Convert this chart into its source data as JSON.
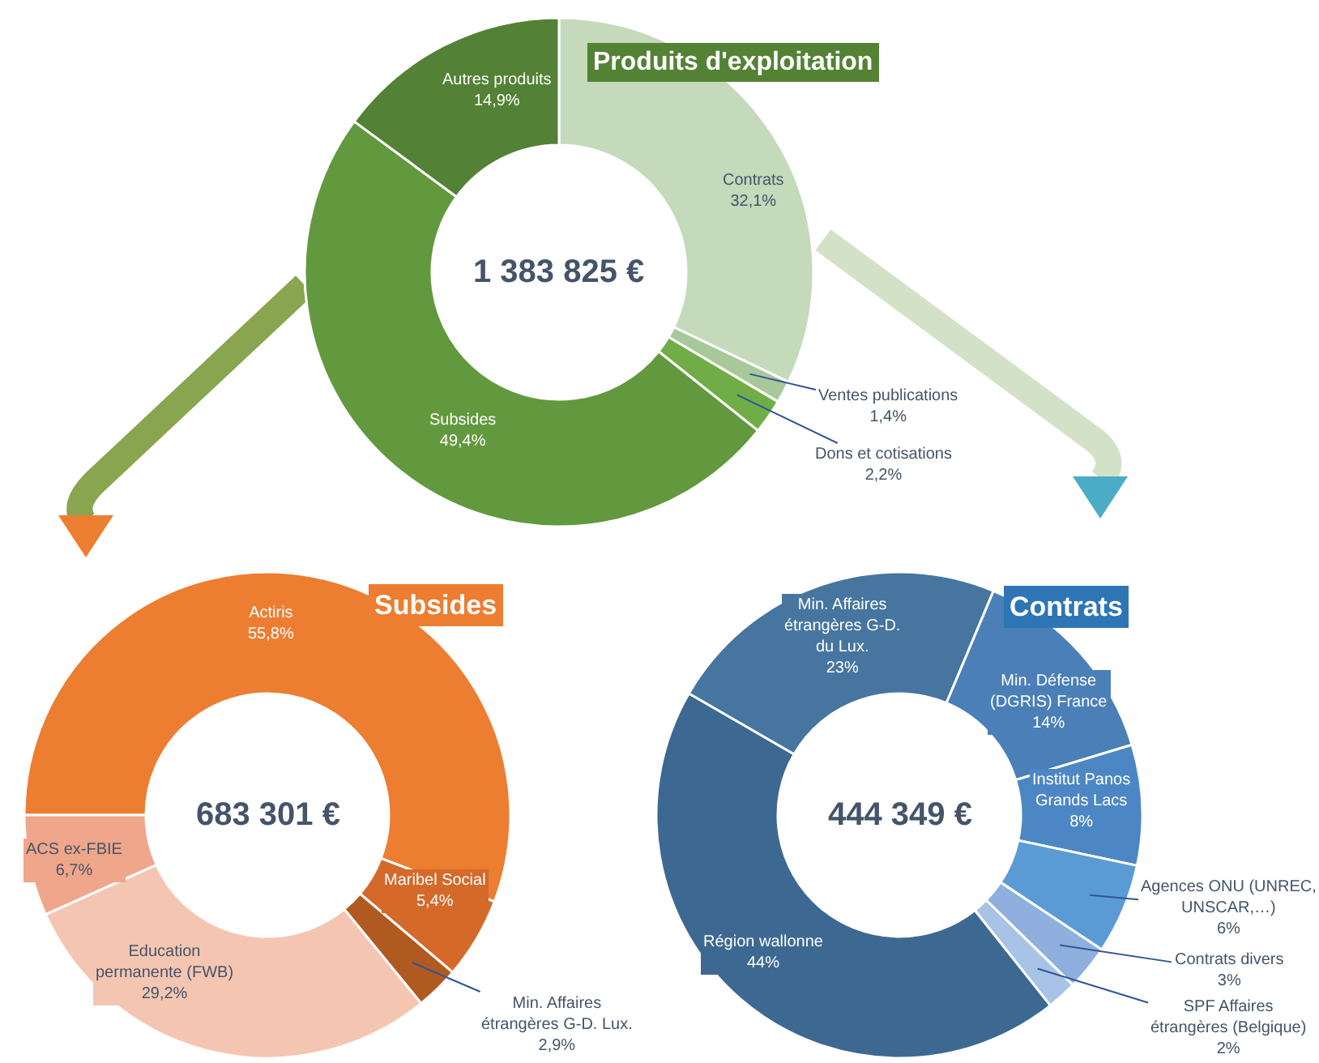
{
  "chart_data": [
    {
      "type": "donut",
      "title": "Produits d'exploitation",
      "categories": [
        "Contrats",
        "Ventes publications",
        "Dons et cotisations",
        "Subsides",
        "Autres produits"
      ],
      "values": [
        32.1,
        1.4,
        2.2,
        49.4,
        14.9
      ],
      "colors": [
        "#c5d9bb",
        "#a9c89a",
        "#70ad47",
        "#62993e",
        "#538135"
      ],
      "value_labels": [
        "32,1%",
        "1,4%",
        "2,2%",
        "49,4%",
        "14,9%"
      ],
      "annotations": [
        "1 383 825 €"
      ]
    },
    {
      "type": "donut",
      "title": "Subsides",
      "categories": [
        "Actiris",
        "Maribel Social",
        "Min. Affaires étrangères G-D. Lux.",
        "Education permanente (FWB)",
        "ACS ex-FBIE"
      ],
      "values": [
        55.8,
        5.4,
        2.9,
        29.2,
        6.7
      ],
      "colors": [
        "#ed7d31",
        "#d4692a",
        "#b05a22",
        "#f4c6b2",
        "#efa68a"
      ],
      "value_labels": [
        "55,8%",
        "5,4%",
        "2,9%",
        "29,2%",
        "6,7%"
      ],
      "annotations": [
        "683 301 €"
      ]
    },
    {
      "type": "donut",
      "title": "Contrats",
      "categories": [
        "Min. Affaires étrangères G-D. du Lux.",
        "Min. Défense (DGRIS) France",
        "Institut Panos Grands Lacs",
        "Agences ONU (UNREC, UNSCAR,…)",
        "Contrats divers",
        "SPF Affaires étrangères (Belgique)",
        "Région wallonne"
      ],
      "values": [
        23,
        14,
        8,
        6,
        3,
        2,
        44
      ],
      "colors": [
        "#46759f",
        "#4a7fb8",
        "#4d86c4",
        "#5b9bd5",
        "#8fb0de",
        "#a8c3e6",
        "#3d6891"
      ],
      "value_labels": [
        "23%",
        "14%",
        "8%",
        "6%",
        "3%",
        "2%",
        "44%"
      ],
      "annotations": [
        "444 349 €"
      ]
    }
  ]
}
